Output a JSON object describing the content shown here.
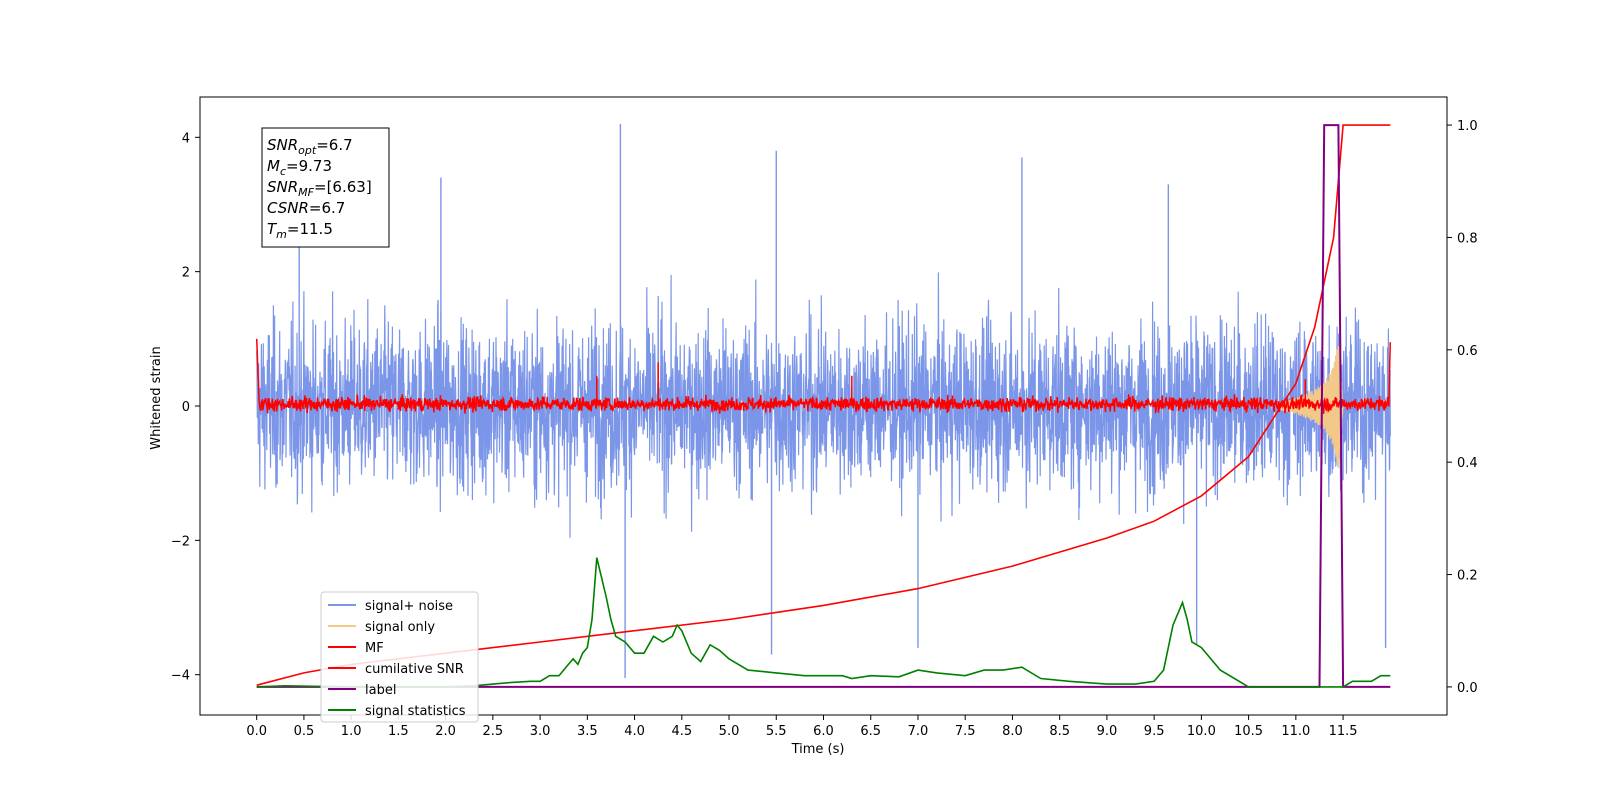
{
  "chart_data": {
    "type": "line",
    "xlabel": "Time (s)",
    "ylabel_left": "Whitened strain",
    "ylabel_right": "",
    "xlim": [
      -0.6,
      12.6
    ],
    "ylim_left": [
      -4.6,
      4.6
    ],
    "ylim_right": [
      -0.05,
      1.05
    ],
    "x_ticks": [
      "0.0",
      "0.5",
      "1.0",
      "1.5",
      "2.0",
      "2.5",
      "3.0",
      "3.5",
      "4.0",
      "4.5",
      "5.0",
      "5.5",
      "6.0",
      "6.5",
      "7.0",
      "7.5",
      "8.0",
      "8.5",
      "9.0",
      "9.5",
      "10.0",
      "10.5",
      "11.0",
      "11.5"
    ],
    "y_left_ticks": [
      -4,
      -2,
      0,
      2,
      4
    ],
    "y_left_tick_labels": [
      "−4",
      "−2",
      "0",
      "2",
      "4"
    ],
    "y_right_ticks": [
      "0.0",
      "0.2",
      "0.4",
      "0.6",
      "0.8",
      "1.0"
    ],
    "legend_location": "lower-left",
    "colors": {
      "signal_noise": "#7b96e8",
      "signal_only": "#f3c98a",
      "mf": "#ff0000",
      "cumulative_snr": "#ff0000",
      "label": "#800080",
      "signal_statistics": "#008000"
    },
    "series": [
      {
        "name": "signal+ noise",
        "axis": "left",
        "description_range": [
          -4.0,
          4.2
        ],
        "spikes": [
          [
            0.45,
            2.6
          ],
          [
            1.95,
            3.4
          ],
          [
            3.85,
            4.2
          ],
          [
            5.5,
            3.8
          ],
          [
            8.1,
            3.7
          ],
          [
            9.65,
            3.3
          ],
          [
            3.9,
            -4.05
          ],
          [
            5.45,
            -3.7
          ],
          [
            7.0,
            -3.6
          ],
          [
            9.95,
            -3.55
          ],
          [
            11.95,
            -3.6
          ]
        ]
      },
      {
        "name": "signal only",
        "axis": "left",
        "x": [
          10.8,
          11.0,
          11.2,
          11.3,
          11.4,
          11.45,
          11.5
        ],
        "envelope": [
          0.05,
          0.12,
          0.25,
          0.35,
          0.6,
          0.95,
          0.0
        ]
      },
      {
        "name": "MF",
        "axis": "left",
        "start_value": 1.0,
        "end_value": 0.95,
        "spikes": [
          [
            4.25,
            0.65
          ],
          [
            3.6,
            0.45
          ],
          [
            6.3,
            0.45
          ],
          [
            11.1,
            0.4
          ]
        ]
      },
      {
        "name": "cumilative SNR",
        "axis": "right",
        "x": [
          0.0,
          0.5,
          1.0,
          2.0,
          3.0,
          4.0,
          5.0,
          6.0,
          7.0,
          8.0,
          9.0,
          9.5,
          10.0,
          10.5,
          11.0,
          11.2,
          11.4,
          11.5,
          12.0
        ],
        "y": [
          0.003,
          0.025,
          0.04,
          0.06,
          0.08,
          0.1,
          0.12,
          0.145,
          0.175,
          0.215,
          0.265,
          0.295,
          0.34,
          0.41,
          0.54,
          0.64,
          0.8,
          1.0,
          1.0
        ]
      },
      {
        "name": "label",
        "axis": "right",
        "x": [
          0.0,
          11.25,
          11.3,
          11.45,
          11.5,
          12.0
        ],
        "y": [
          0.0,
          0.0,
          1.0,
          1.0,
          0.0,
          0.0
        ]
      },
      {
        "name": "signal statistics",
        "axis": "right",
        "x": [
          0.0,
          0.3,
          0.6,
          1.0,
          1.5,
          2.0,
          2.3,
          2.5,
          2.7,
          2.9,
          3.0,
          3.1,
          3.2,
          3.3,
          3.35,
          3.4,
          3.45,
          3.5,
          3.55,
          3.6,
          3.7,
          3.75,
          3.8,
          3.9,
          4.0,
          4.1,
          4.2,
          4.3,
          4.4,
          4.45,
          4.5,
          4.6,
          4.7,
          4.8,
          4.9,
          5.0,
          5.2,
          5.5,
          5.8,
          6.0,
          6.2,
          6.3,
          6.5,
          6.8,
          7.0,
          7.2,
          7.5,
          7.7,
          7.9,
          8.1,
          8.3,
          8.6,
          9.0,
          9.3,
          9.5,
          9.6,
          9.65,
          9.7,
          9.8,
          9.85,
          9.9,
          10.0,
          10.2,
          10.5,
          11.0,
          11.2,
          11.5,
          11.6,
          11.8,
          11.9,
          12.0
        ],
        "y": [
          0.0,
          0.002,
          0.001,
          0.0,
          0.0,
          0.0,
          0.002,
          0.005,
          0.008,
          0.01,
          0.01,
          0.02,
          0.02,
          0.04,
          0.05,
          0.04,
          0.06,
          0.07,
          0.12,
          0.23,
          0.16,
          0.12,
          0.09,
          0.08,
          0.06,
          0.06,
          0.09,
          0.08,
          0.09,
          0.11,
          0.1,
          0.06,
          0.045,
          0.075,
          0.065,
          0.05,
          0.03,
          0.025,
          0.02,
          0.02,
          0.02,
          0.015,
          0.02,
          0.018,
          0.03,
          0.025,
          0.02,
          0.03,
          0.03,
          0.035,
          0.015,
          0.01,
          0.005,
          0.005,
          0.01,
          0.03,
          0.07,
          0.11,
          0.15,
          0.12,
          0.08,
          0.07,
          0.03,
          0.0,
          0.0,
          0.0,
          0.0,
          0.01,
          0.01,
          0.02,
          0.02
        ]
      }
    ],
    "info_box": [
      {
        "name": "SNR",
        "sub": "opt",
        "value": "=6.7"
      },
      {
        "name": "M",
        "sub": "c",
        "value": "=9.73"
      },
      {
        "name": "SNR",
        "sub": "MF",
        "value": "=[6.63]"
      },
      {
        "name": "CSNR",
        "sub": "",
        "value": "=6.7"
      },
      {
        "name": "T",
        "sub": "m",
        "value": "=11.5"
      }
    ]
  }
}
